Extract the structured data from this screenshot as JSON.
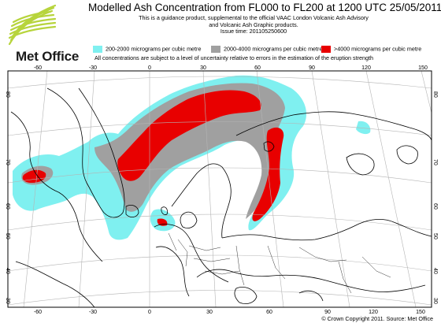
{
  "title": "Modelled Ash Concentration from FL000 to FL200 at 1200 UTC 25/05/2011",
  "subtitle_lines": [
    "This is a guidance product, supplemental to the official VAAC London Volcanic Ash Advisory",
    "and Volcanic Ash Graphic products.",
    "Issue time: 201105250600"
  ],
  "logo_text": "Met Office",
  "legend": {
    "items": [
      {
        "label": "200-2000 micrograms per cubic metre",
        "color": "#7ff0f0"
      },
      {
        "label": "2000-4000 micrograms per cubic metre",
        "color": "#a0a0a0"
      },
      {
        "label": ">4000 micrograms per cubic metre",
        "color": "#e80000"
      }
    ],
    "note": "All concentrations are subject to a level of uncertainty relative to errors in the estimation of the eruption strength"
  },
  "map": {
    "top_longitude_labels": [
      "-60",
      "-30",
      "0",
      "30",
      "60",
      "90",
      "120",
      "150"
    ],
    "bottom_longitude_labels": [
      "-60",
      "-30",
      "0",
      "30",
      "60",
      "90",
      "120",
      "150"
    ],
    "left_latitude_labels": [
      "80",
      "70",
      "60",
      "50",
      "40",
      "30"
    ],
    "right_latitude_labels": [
      "80",
      "70",
      "60",
      "50",
      "40",
      "30"
    ],
    "coastline_color": "#000000",
    "grid_color": "#b4b4b4"
  },
  "copyright": "© Crown Copyright 2011. Source: Met Office"
}
